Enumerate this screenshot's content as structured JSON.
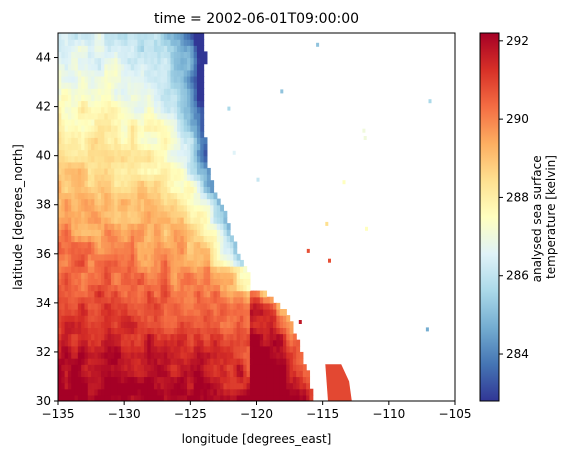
{
  "chart_data": {
    "type": "heatmap",
    "title": "time = 2002-06-01T09:00:00",
    "xlabel": "longitude [degrees_east]",
    "ylabel": "latitude [degrees_north]",
    "xlim": [
      -135,
      -105
    ],
    "ylim": [
      30,
      45
    ],
    "x_ticks": [
      -135,
      -130,
      -125,
      -120,
      -115,
      -110,
      -105
    ],
    "y_ticks": [
      30,
      32,
      34,
      36,
      38,
      40,
      42,
      44
    ],
    "colorbar": {
      "label_lines": [
        "analysed sea surface",
        "temperature [kelvin]"
      ],
      "range": [
        282.8,
        292.2
      ],
      "ticks": [
        284,
        286,
        288,
        290,
        292
      ],
      "colormap": "RdYlBu_r"
    },
    "field_description": "Sea surface temperature over the ocean west of the North American coast; land (coast and inland, plus scattered inland lakes) left blank",
    "coastline": [
      [
        -124.2,
        45.0
      ],
      [
        -124.0,
        44.0
      ],
      [
        -124.1,
        43.0
      ],
      [
        -124.3,
        42.0
      ],
      [
        -124.1,
        41.0
      ],
      [
        -123.9,
        40.2
      ],
      [
        -123.8,
        39.6
      ],
      [
        -123.3,
        38.6
      ],
      [
        -122.5,
        37.8
      ],
      [
        -122.4,
        37.4
      ],
      [
        -121.9,
        36.6
      ],
      [
        -121.5,
        35.9
      ],
      [
        -120.8,
        35.2
      ],
      [
        -120.6,
        34.6
      ],
      [
        -119.5,
        34.4
      ],
      [
        -118.5,
        34.0
      ],
      [
        -117.6,
        33.4
      ],
      [
        -117.2,
        32.7
      ],
      [
        -116.7,
        31.9
      ],
      [
        -116.2,
        31.0
      ],
      [
        -115.8,
        30.0
      ]
    ],
    "gulf_strip": [
      [
        -114.8,
        31.5
      ],
      [
        -113.6,
        31.5
      ],
      [
        -113.0,
        30.8
      ],
      [
        -112.8,
        30.0
      ],
      [
        -114.6,
        30.0
      ]
    ]
  }
}
